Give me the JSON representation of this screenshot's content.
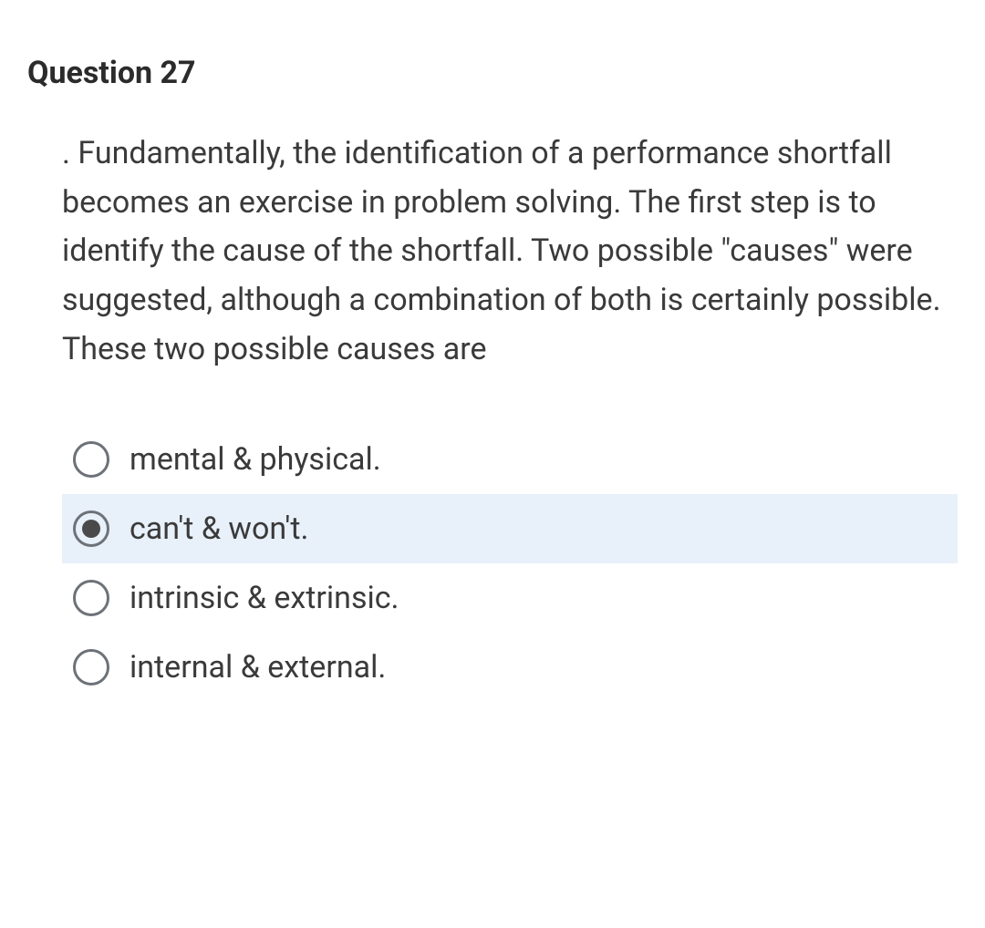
{
  "question": {
    "title": "Question 27",
    "text": ".  Fundamentally, the identification of a performance shortfall becomes an exercise in problem solving.  The first step is to identify the cause of the shortfall.  Two possible \"causes\" were suggested, although a combination of both is certainly possible.  These two possible causes are",
    "options": [
      {
        "label": "mental & physical.",
        "selected": false
      },
      {
        "label": "can't & won't.",
        "selected": true
      },
      {
        "label": "intrinsic & extrinsic.",
        "selected": false
      },
      {
        "label": "internal & external.",
        "selected": false
      }
    ]
  },
  "colors": {
    "background": "#ffffff",
    "text_primary": "#2b2b2b",
    "text_body": "#3a3a3a",
    "radio_border": "#6d7278",
    "radio_fill": "#4a4a4a",
    "selected_bg": "#e8f0fa"
  }
}
